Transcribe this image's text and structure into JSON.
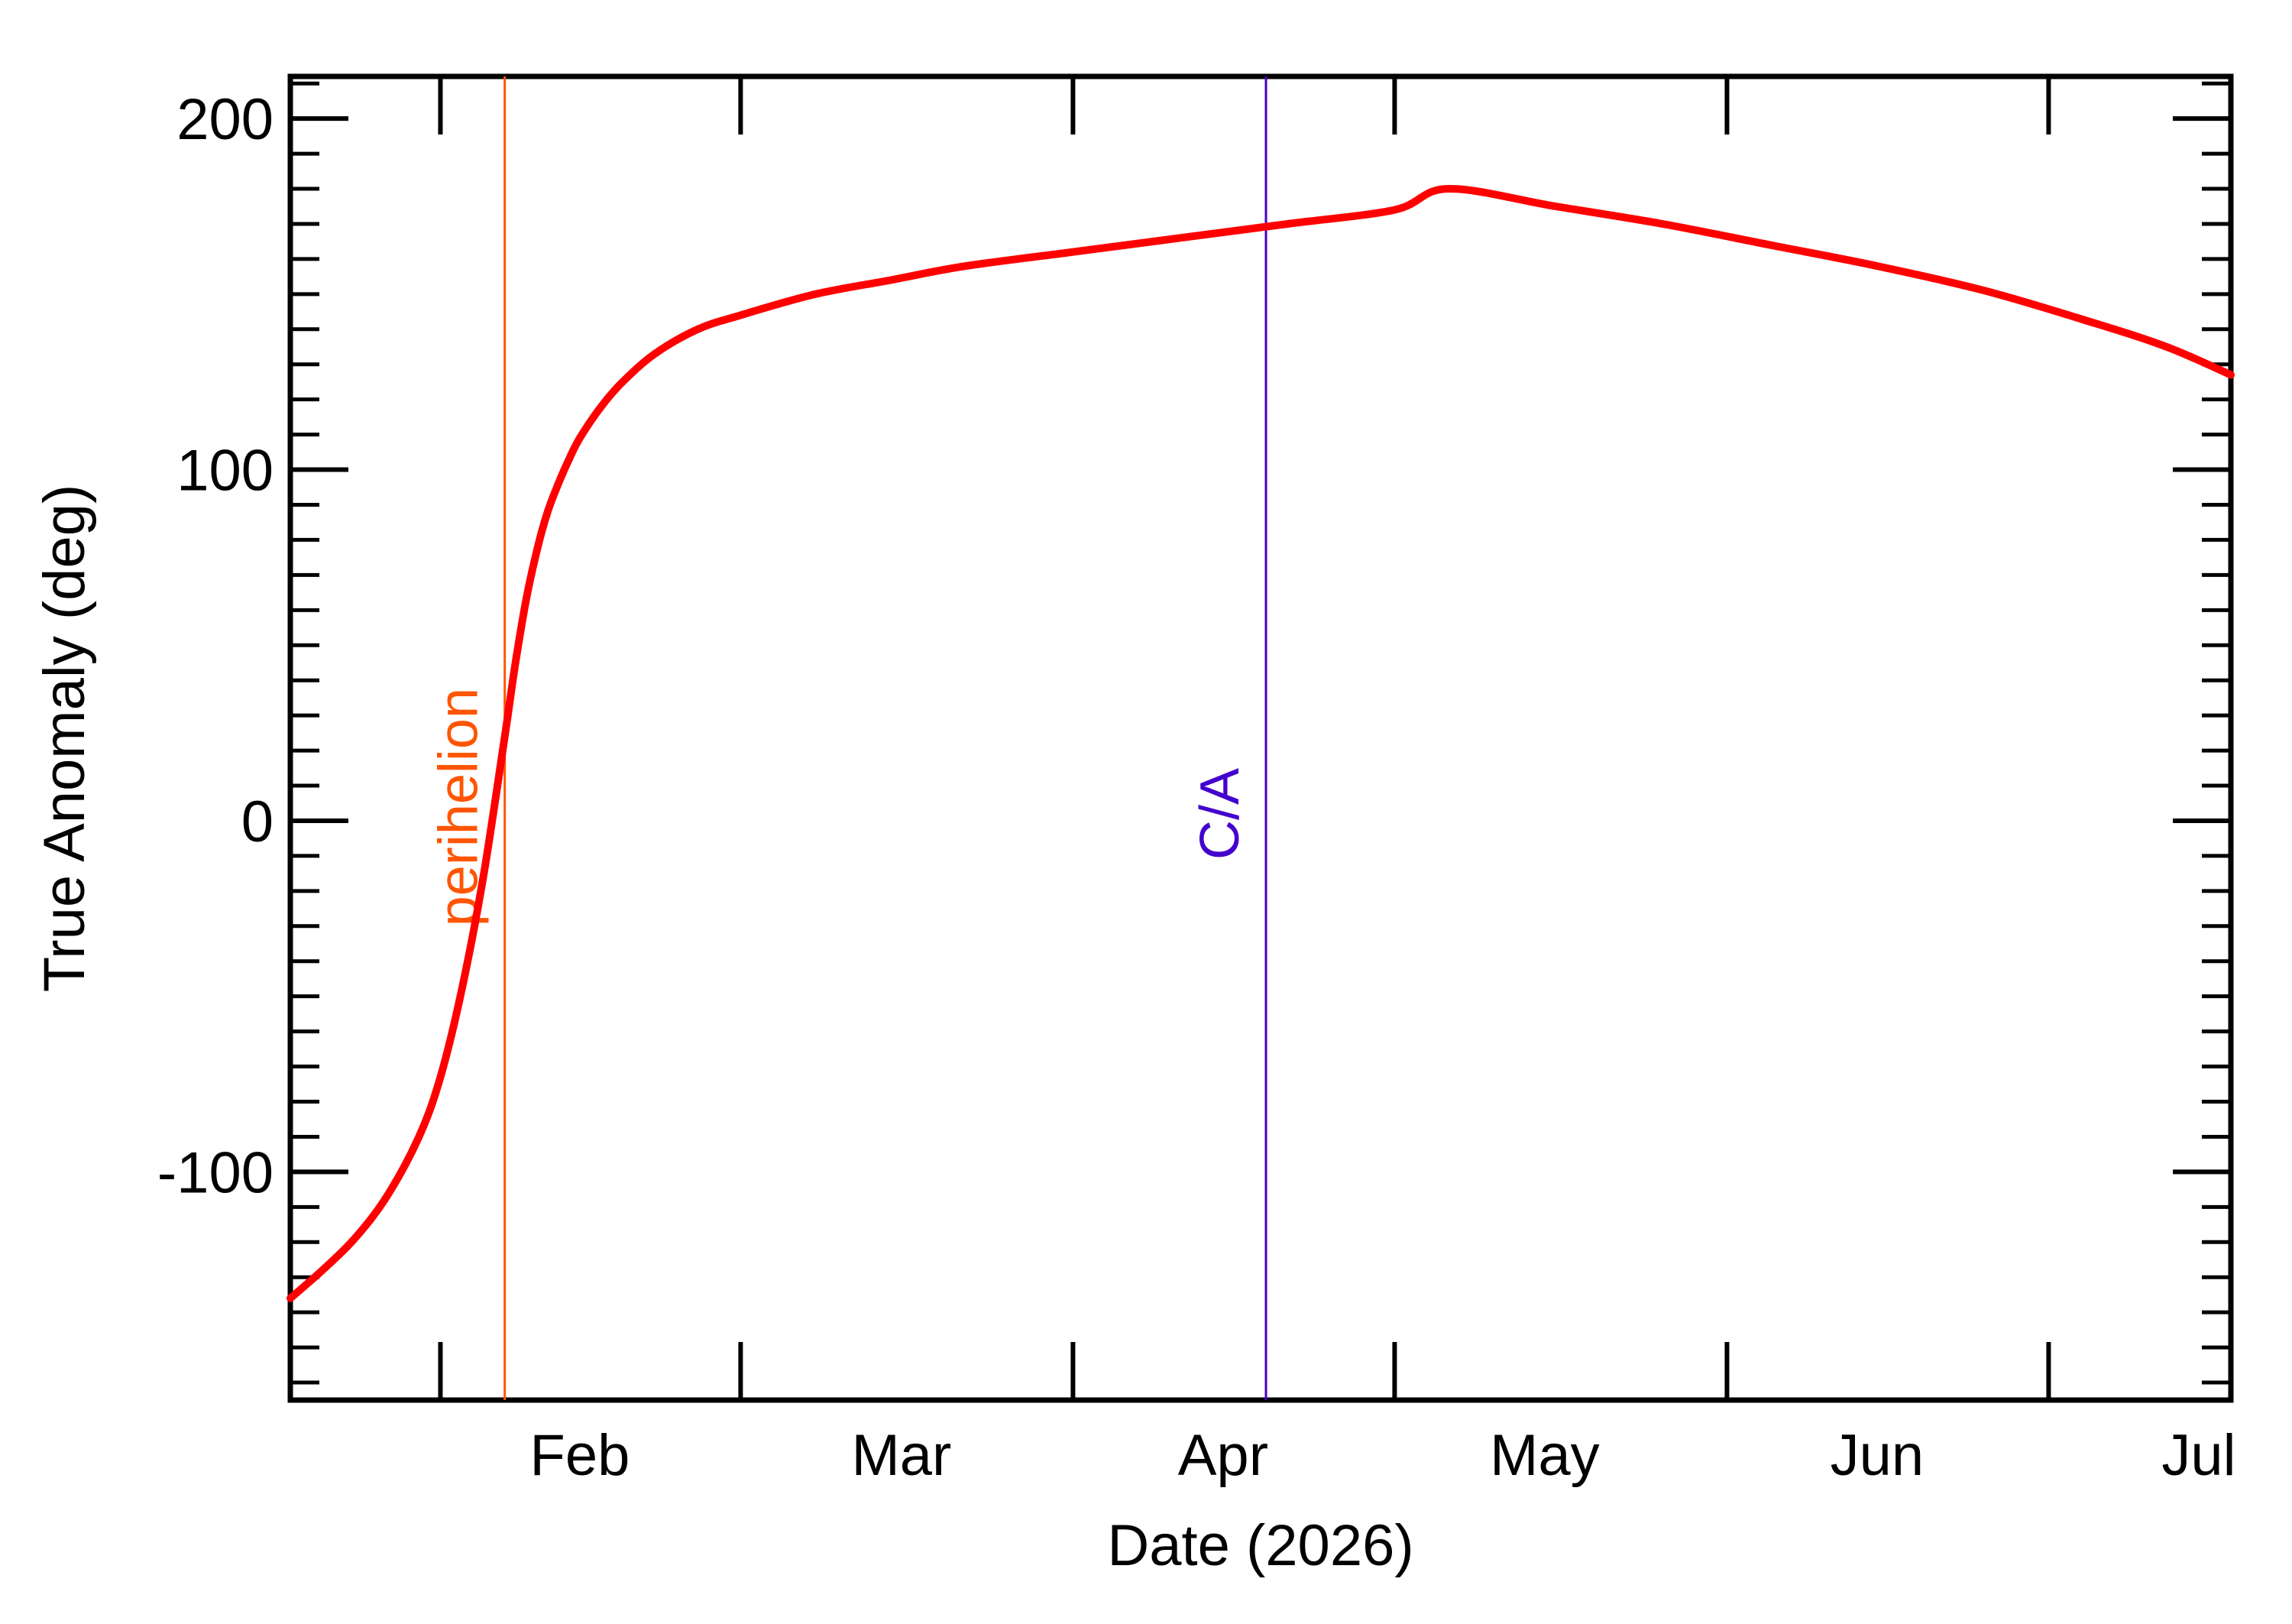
{
  "chart_data": {
    "type": "line",
    "title": "",
    "xlabel": "Date (2026)",
    "ylabel": "True Anomaly (deg)",
    "xlim": [
      "2026-01-18",
      "2026-07-18"
    ],
    "ylim": [
      -165,
      212
    ],
    "y_ticks": [
      -100,
      0,
      100,
      200
    ],
    "y_tick_labels": [
      "-100",
      "0",
      "100",
      "200"
    ],
    "x_month_labels": [
      {
        "label": "Feb",
        "date": "2026-02-14"
      },
      {
        "label": "Mar",
        "date": "2026-03-16"
      },
      {
        "label": "Apr",
        "date": "2026-04-15"
      },
      {
        "label": "May",
        "date": "2026-05-15"
      },
      {
        "label": "Jun",
        "date": "2026-06-15"
      },
      {
        "label": "Jul",
        "date": "2026-07-15"
      }
    ],
    "x_month_boundaries": [
      "2026-02-01",
      "2026-03-01",
      "2026-04-01",
      "2026-05-01",
      "2026-06-01",
      "2026-07-01"
    ],
    "series": [
      {
        "color": "#ff0000",
        "x": [
          "2026-01-18",
          "2026-01-21",
          "2026-01-24",
          "2026-01-27",
          "2026-01-30",
          "2026-02-01",
          "2026-02-03",
          "2026-02-05",
          "2026-02-07",
          "2026-02-08",
          "2026-02-09",
          "2026-02-10",
          "2026-02-11",
          "2026-02-12",
          "2026-02-13",
          "2026-02-14",
          "2026-02-16",
          "2026-02-18",
          "2026-02-21",
          "2026-02-25",
          "2026-03-01",
          "2026-03-08",
          "2026-03-15",
          "2026-03-22",
          "2026-04-01",
          "2026-04-11",
          "2026-04-21",
          "2026-05-01",
          "2026-05-06",
          "2026-05-16",
          "2026-05-26",
          "2026-06-05",
          "2026-06-15",
          "2026-06-25",
          "2026-07-05",
          "2026-07-12",
          "2026-07-18"
        ],
        "values": [
          -136,
          -128,
          -119,
          -107,
          -90,
          -73,
          -48,
          -16,
          24,
          45,
          63,
          77,
          88,
          96,
          103,
          109,
          118,
          125,
          133,
          140,
          144,
          150,
          154,
          158,
          162,
          166,
          170,
          174,
          180,
          175,
          170,
          164,
          158,
          151,
          142,
          135,
          127
        ]
      }
    ],
    "annotations": [
      {
        "label": "perihelion",
        "date": "2026-02-07",
        "color": "#ff5500"
      },
      {
        "label": "C/A",
        "date": "2026-04-19",
        "color": "#4400cc"
      }
    ],
    "grid": false,
    "legend": "none"
  }
}
